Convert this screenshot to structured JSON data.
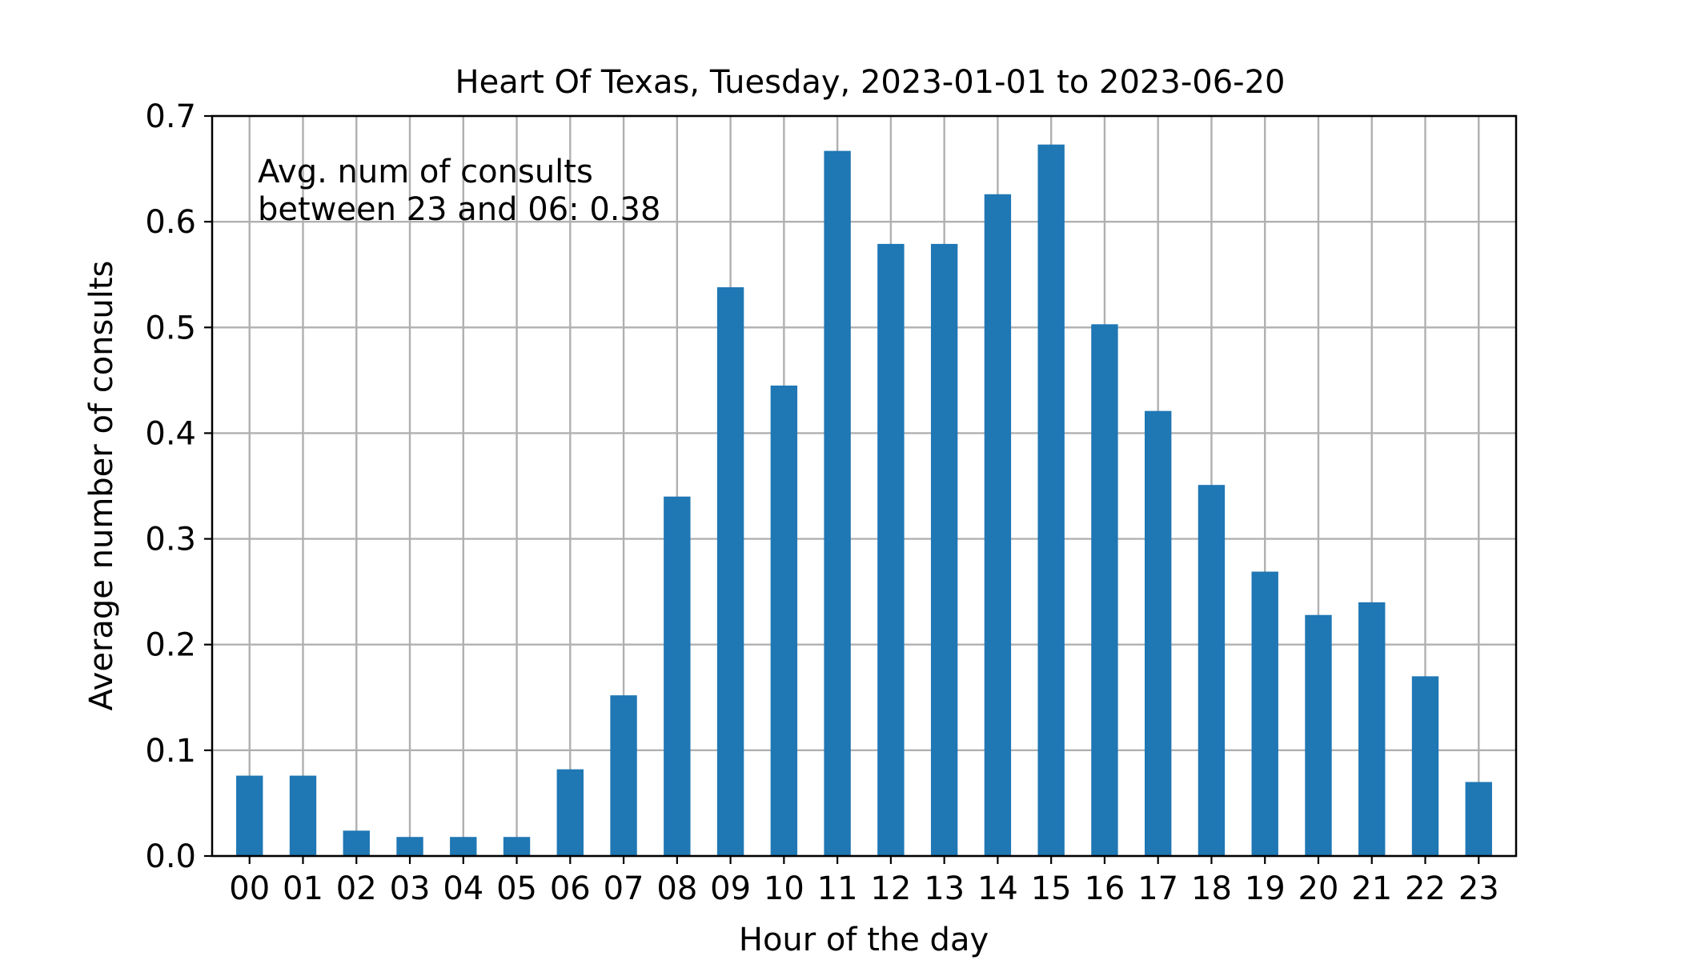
{
  "chart_data": {
    "type": "bar",
    "title": "Heart Of Texas, Tuesday, 2023-01-01 to 2023-06-20",
    "xlabel": "Hour of the day",
    "ylabel": "Average number of consults",
    "categories": [
      "00",
      "01",
      "02",
      "03",
      "04",
      "05",
      "06",
      "07",
      "08",
      "09",
      "10",
      "11",
      "12",
      "13",
      "14",
      "15",
      "16",
      "17",
      "18",
      "19",
      "20",
      "21",
      "22",
      "23"
    ],
    "values": [
      0.076,
      0.076,
      0.024,
      0.018,
      0.018,
      0.018,
      0.082,
      0.152,
      0.34,
      0.538,
      0.445,
      0.667,
      0.579,
      0.579,
      0.626,
      0.673,
      0.503,
      0.421,
      0.351,
      0.269,
      0.228,
      0.24,
      0.17,
      0.07
    ],
    "ylim": [
      0,
      0.7
    ],
    "yticks": [
      "0.0",
      "0.1",
      "0.2",
      "0.3",
      "0.4",
      "0.5",
      "0.6",
      "0.7"
    ],
    "grid": true,
    "bar_color": "#1f77b4",
    "grid_color": "#b0b0b0",
    "annotation": [
      "Avg. num of consults",
      "between 23 and 06: 0.38"
    ]
  }
}
